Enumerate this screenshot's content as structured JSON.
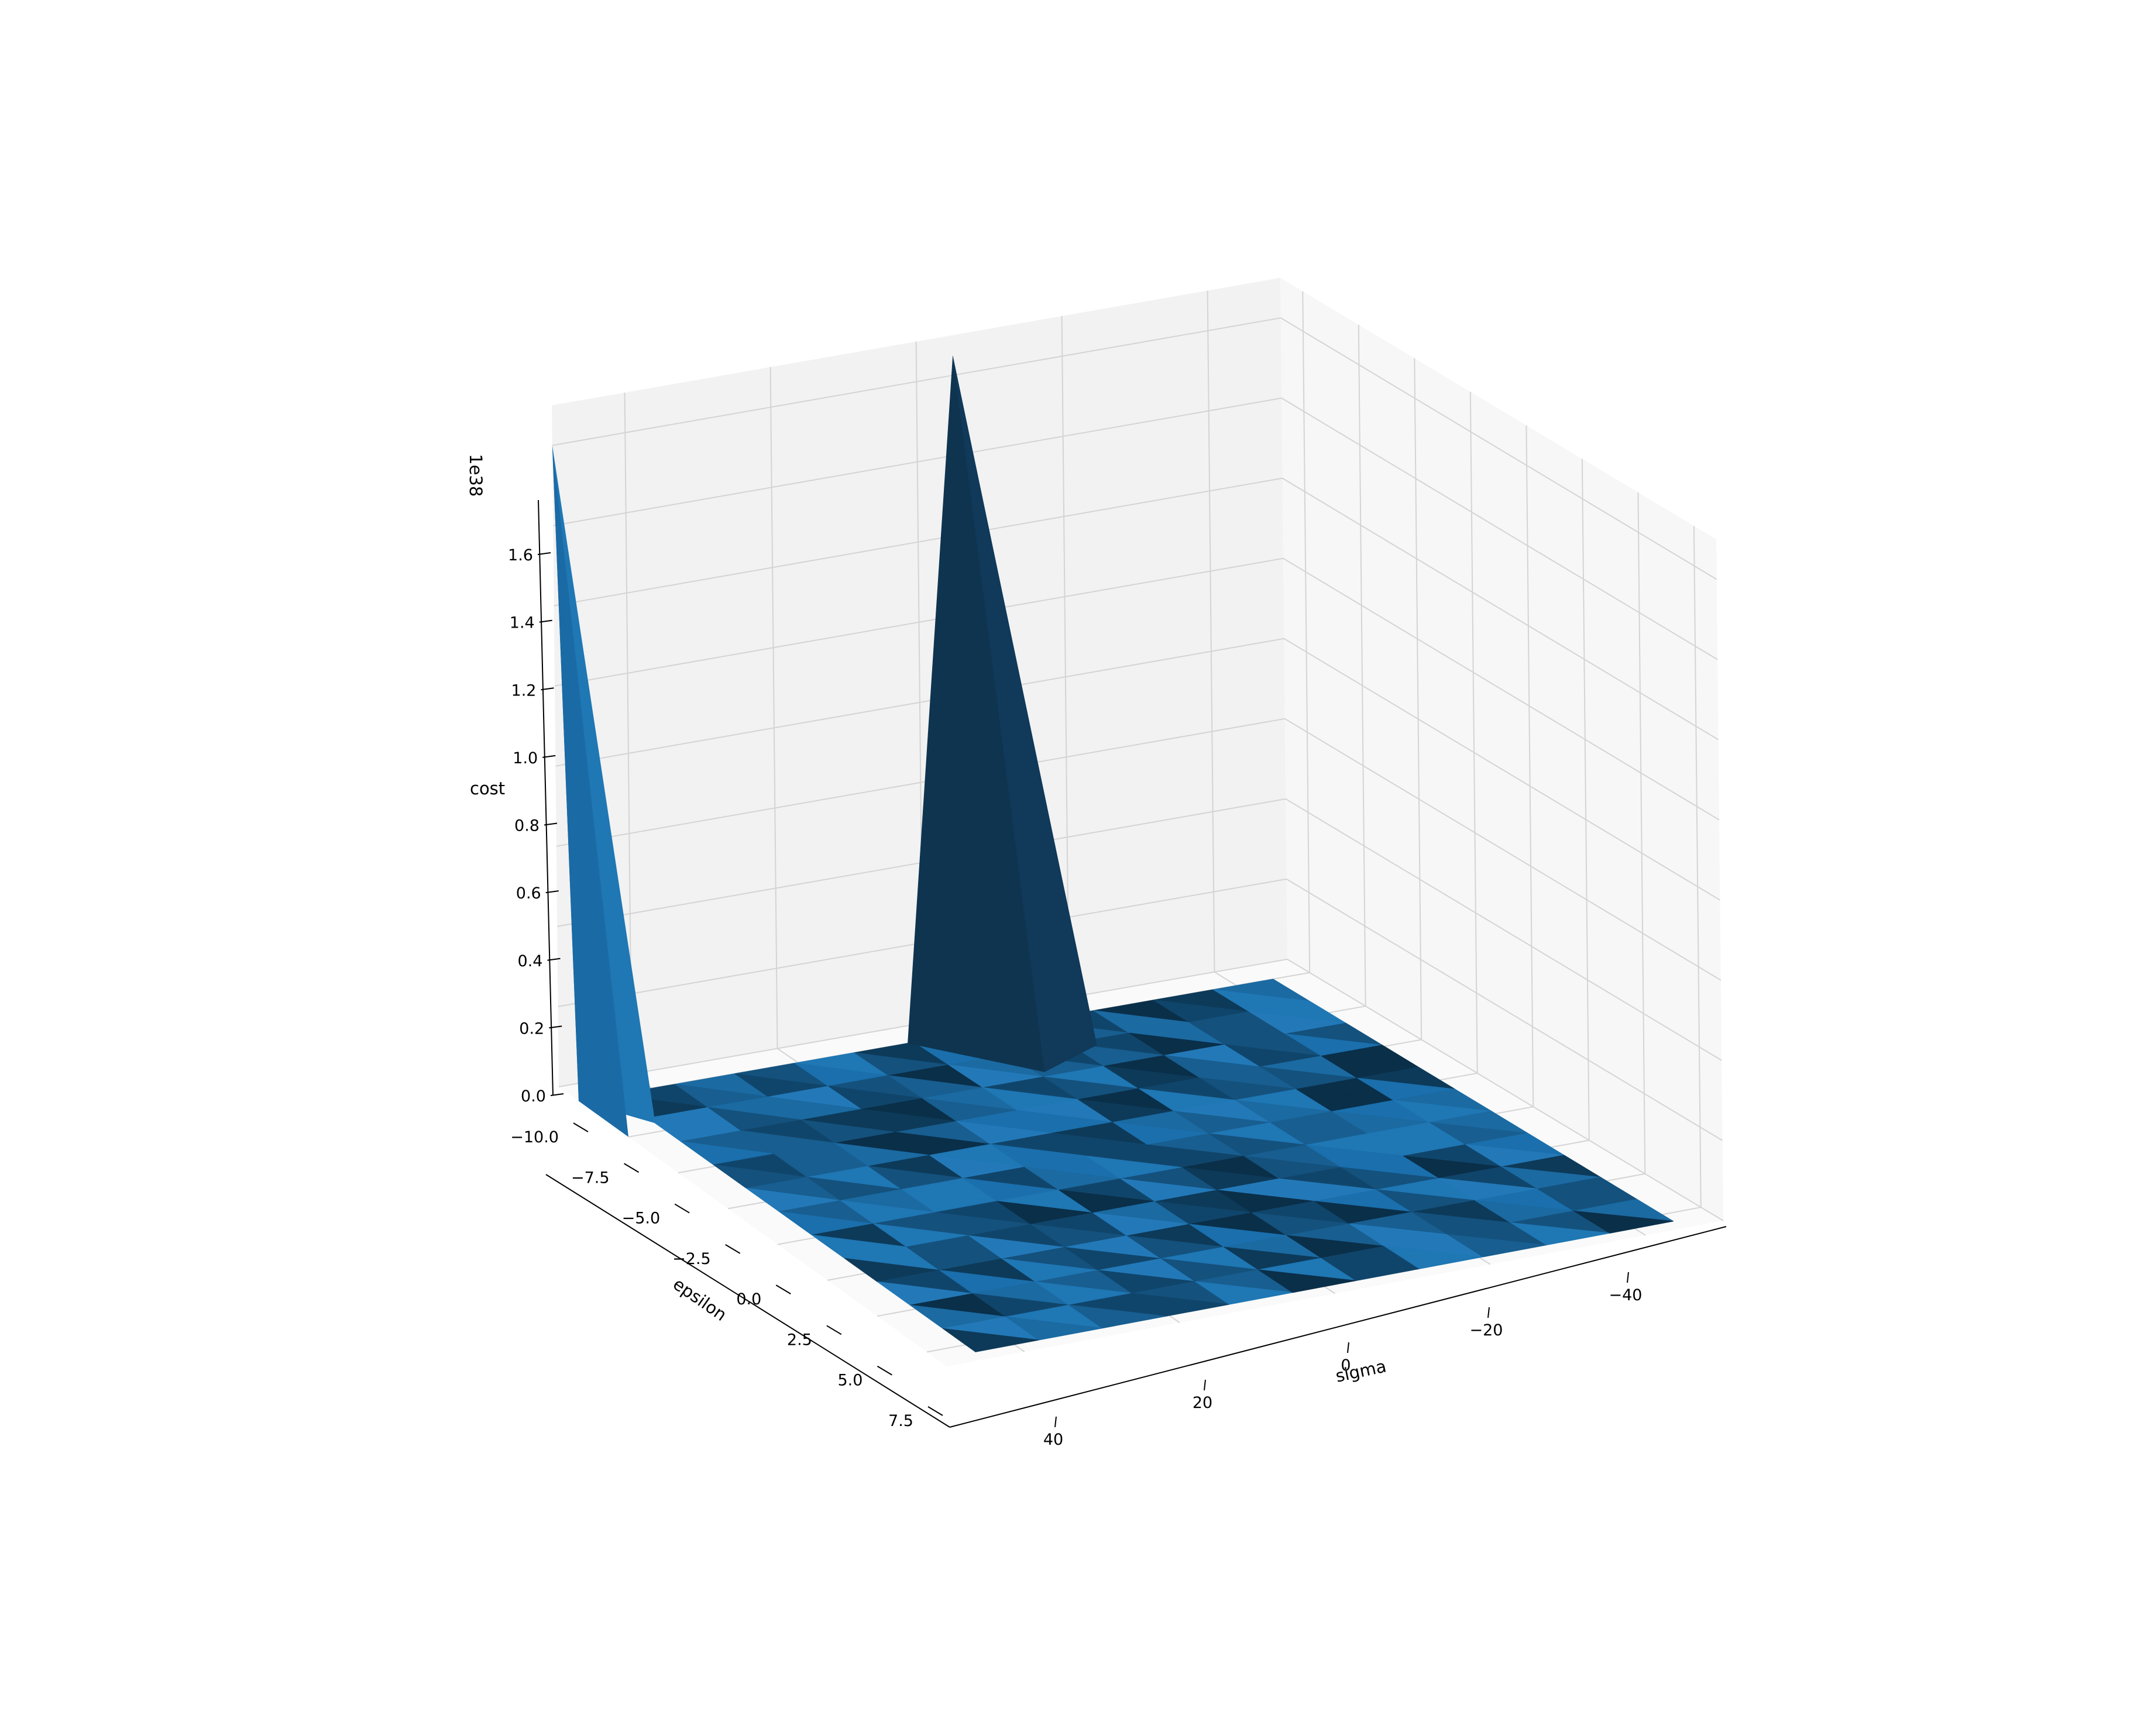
{
  "chart_data": {
    "type": "surface3d",
    "title": "",
    "zlabel": "cost",
    "z_offset_label": "1e38",
    "xlabel": "sigma",
    "ylabel": "epsilon",
    "sigma_ticks": [
      {
        "value": -40,
        "label": "−40"
      },
      {
        "value": -20,
        "label": "−20"
      },
      {
        "value": 0,
        "label": "0"
      },
      {
        "value": 20,
        "label": "20"
      },
      {
        "value": 40,
        "label": "40"
      }
    ],
    "epsilon_ticks": [
      {
        "value": -10.0,
        "label": "−10.0"
      },
      {
        "value": -7.5,
        "label": "−7.5"
      },
      {
        "value": -5.0,
        "label": "−5.0"
      },
      {
        "value": -2.5,
        "label": "−2.5"
      },
      {
        "value": 0.0,
        "label": "0.0"
      },
      {
        "value": 2.5,
        "label": "2.5"
      },
      {
        "value": 5.0,
        "label": "5.0"
      },
      {
        "value": 7.5,
        "label": "7.5"
      }
    ],
    "cost_ticks": [
      {
        "value": 0.0,
        "label": "0.0"
      },
      {
        "value": 0.2,
        "label": "0.2"
      },
      {
        "value": 0.4,
        "label": "0.4"
      },
      {
        "value": 0.6,
        "label": "0.6"
      },
      {
        "value": 0.8,
        "label": "0.8"
      },
      {
        "value": 1.0,
        "label": "1.0"
      },
      {
        "value": 1.2,
        "label": "1.2"
      },
      {
        "value": 1.4,
        "label": "1.4"
      },
      {
        "value": 1.6,
        "label": "1.6"
      }
    ],
    "sigma_range": [
      -50,
      50
    ],
    "epsilon_range": [
      -11,
      8.5
    ],
    "cost_range": [
      0,
      1.7
    ],
    "surface_color": "#1f77b4",
    "peaks": [
      {
        "sigma": 50,
        "epsilon": -11,
        "cost": 1.6
      },
      {
        "sigma": -5,
        "epsilon": -11,
        "cost": 1.65
      }
    ],
    "grid": true,
    "pane_colors": {
      "back": "#f2f2f2",
      "side": "#f7f7f7",
      "floor": "#fafafa",
      "grid": "#d4d4d4"
    }
  }
}
